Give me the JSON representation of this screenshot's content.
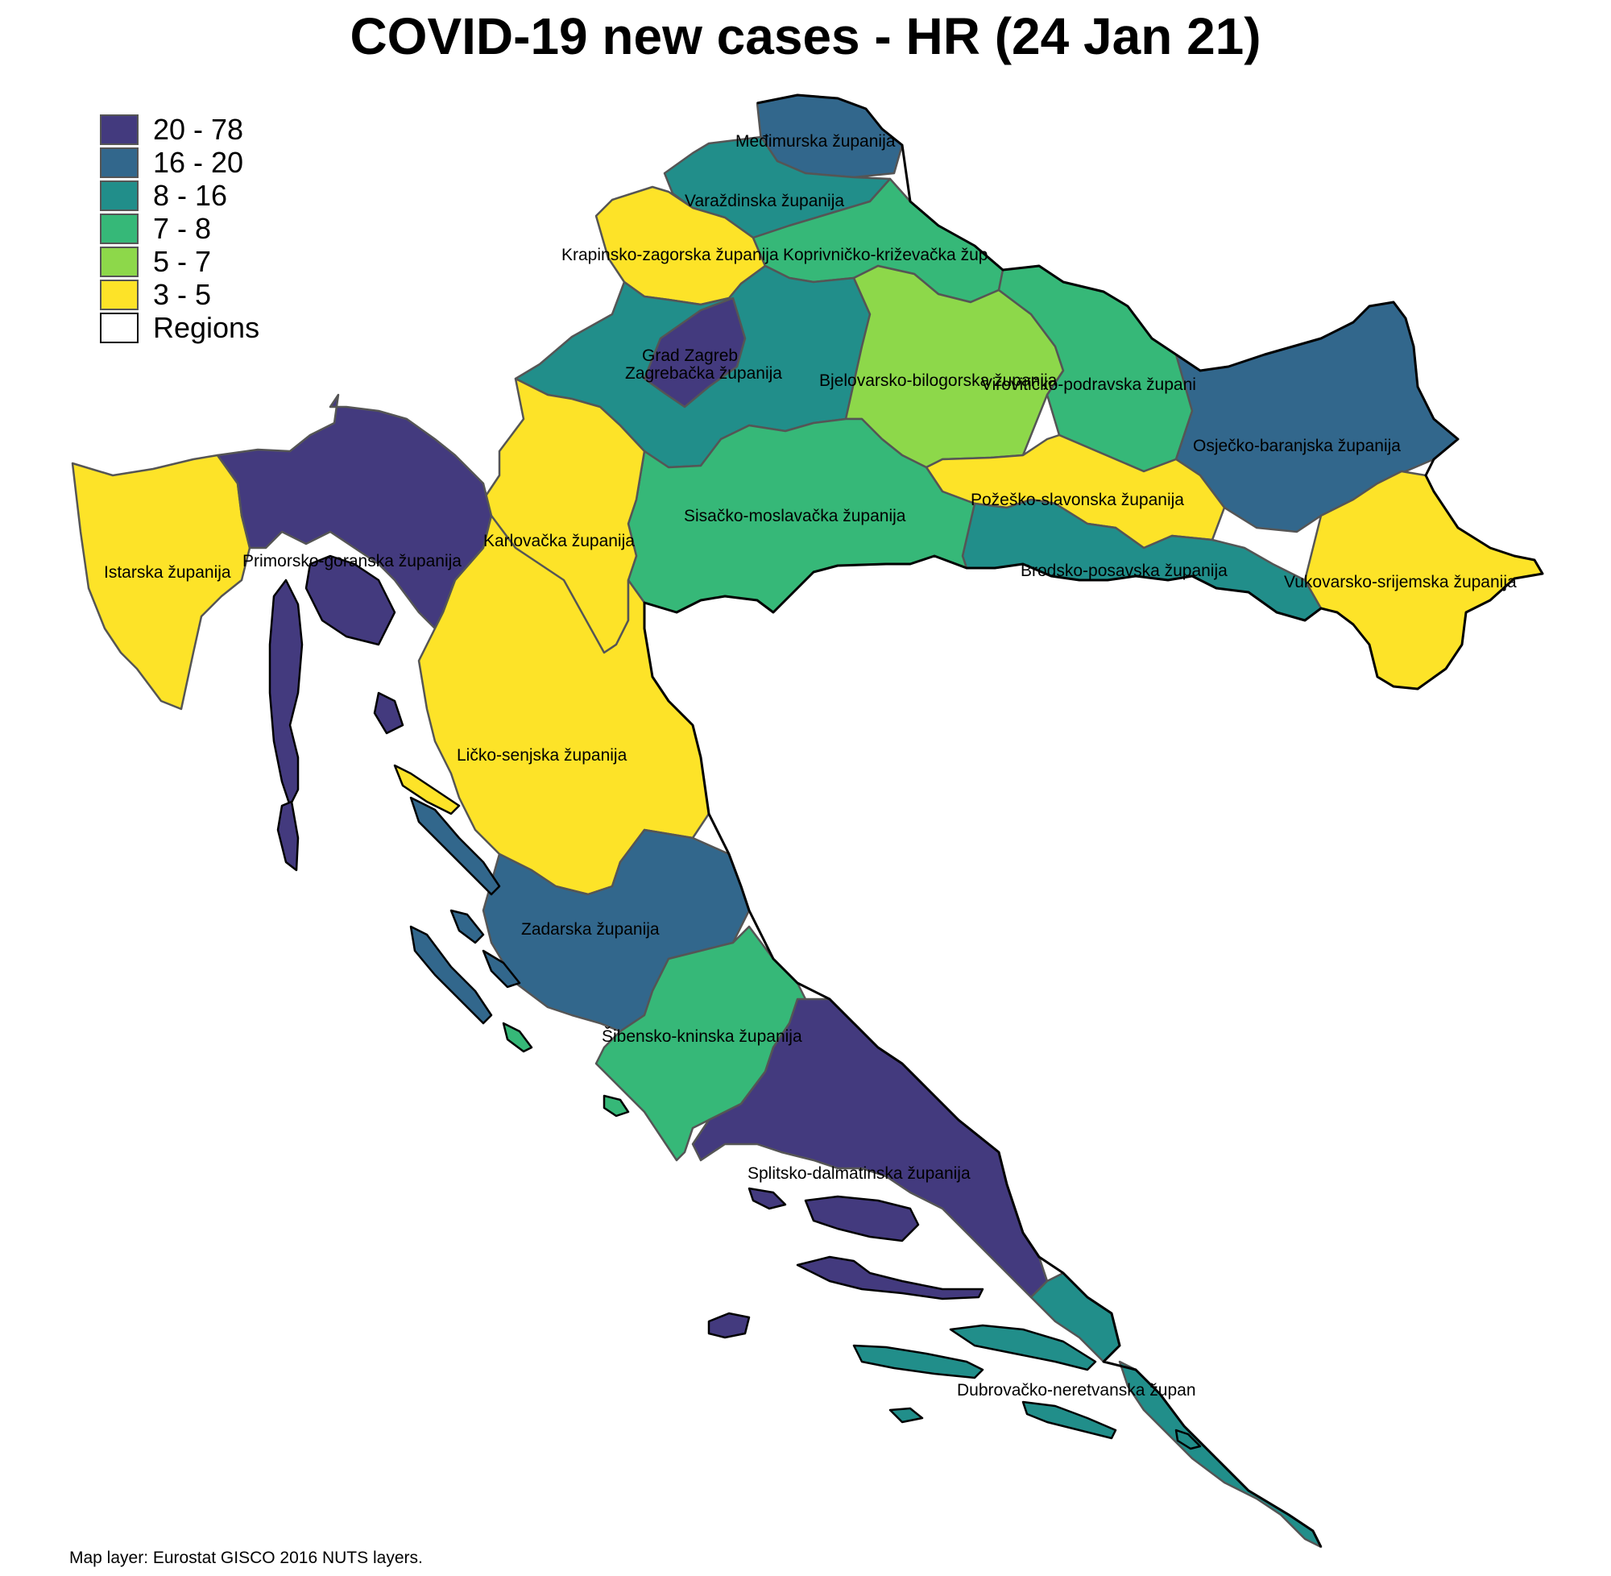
{
  "title": "COVID-19 new cases - HR (24 Jan 21)",
  "caption": "Map layer: Eurostat GISCO 2016 NUTS layers.",
  "legend": {
    "classes": [
      {
        "label": "20 - 78",
        "color": "#433A7E"
      },
      {
        "label": "16 - 20",
        "color": "#32678C"
      },
      {
        "label": "8 - 16",
        "color": "#218E8A"
      },
      {
        "label": "7 - 8",
        "color": "#36B878"
      },
      {
        "label": "5 - 7",
        "color": "#8DD84A"
      },
      {
        "label": "3 - 5",
        "color": "#FDE328"
      }
    ],
    "regions_label": "Regions"
  },
  "regions": [
    {
      "id": "medimurska",
      "name": "Međimurska županija",
      "class": "16 - 20"
    },
    {
      "id": "varazdinska",
      "name": "Varaždinska županija",
      "class": "8 - 16"
    },
    {
      "id": "krapinsko",
      "name": "Krapinsko-zagorska županija",
      "class": "3 - 5"
    },
    {
      "id": "koprivnicko",
      "name": "Koprivničko-križevačka žup",
      "class": "7 - 8"
    },
    {
      "id": "grad-zagreb",
      "name": "Grad Zagreb",
      "class": "20 - 78"
    },
    {
      "id": "zagrebacka",
      "name": "Zagrebačka županija",
      "class": "8 - 16"
    },
    {
      "id": "bjelovarsko",
      "name": "Bjelovarsko-bilogorska županija",
      "class": "5 - 7"
    },
    {
      "id": "viroviticko",
      "name": "Virovitičko-podravska županija",
      "class": "7 - 8"
    },
    {
      "id": "osjecko",
      "name": "Osječko-baranjska županija",
      "class": "16 - 20"
    },
    {
      "id": "pozesko",
      "name": "Požeško-slavonska županija",
      "class": "3 - 5"
    },
    {
      "id": "brodsko",
      "name": "Brodsko-posavska županija",
      "class": "8 - 16"
    },
    {
      "id": "vukovarsko",
      "name": "Vukovarsko-srijemska županija",
      "class": "3 - 5"
    },
    {
      "id": "sisacko",
      "name": "Sisačko-moslavačka županija",
      "class": "7 - 8"
    },
    {
      "id": "karlovacka",
      "name": "Karlovačka županija",
      "class": "3 - 5"
    },
    {
      "id": "istarska",
      "name": "Istarska županija",
      "class": "3 - 5"
    },
    {
      "id": "primorsko",
      "name": "Primorsko-goranska županija",
      "class": "20 - 78"
    },
    {
      "id": "licko",
      "name": "Ličko-senjska županija",
      "class": "3 - 5"
    },
    {
      "id": "zadarska",
      "name": "Zadarska županija",
      "class": "16 - 20"
    },
    {
      "id": "sibensko",
      "name": "Šibensko-kninska županija",
      "class": "7 - 8"
    },
    {
      "id": "splitsko",
      "name": "Splitsko-dalmatinska županija",
      "class": "20 - 78"
    },
    {
      "id": "dubrovacko",
      "name": "Dubrovačko-neretvanska županija",
      "class": "8 - 16"
    }
  ],
  "labels": {
    "medimurska": "Međimurska županija",
    "varazdinska": "Varaždinska županija",
    "krapinsko": "Krapinsko-zagorska županija",
    "koprivnicko": "Koprivničko-križevačka žup",
    "grad-zagreb": "Grad Zagreb",
    "zagrebacka": "Zagrebačka županija",
    "bjelovarsko": "Bjelovarsko-bilogorska županija",
    "viroviticko": "Virovitičko-podravska župani",
    "osjecko": "Osječko-baranjska županija",
    "pozesko": "Požeško-slavonska županija",
    "brodsko": "Brodsko-posavska županija",
    "vukovarsko": "Vukovarsko-srijemska županija",
    "sisacko": "Sisačko-moslavačka županija",
    "karlovacka": "Karlovačka županija",
    "istarska": "Istarska županija",
    "primorsko": "Primorsko-goranska županija",
    "licko": "Ličko-senjska županija",
    "zadarska": "Zadarska županija",
    "sibensko": "Šibensko-kninska županija",
    "splitsko": "Splitsko-dalmatinska županija",
    "dubrovacko": "Dubrovačko-neretvanska župan"
  }
}
